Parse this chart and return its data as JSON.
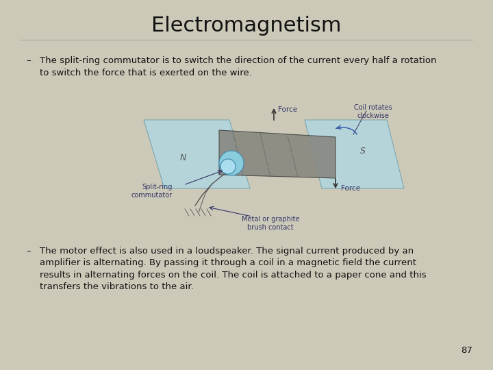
{
  "title": "Electromagnetism",
  "title_fontsize": 22,
  "title_fontweight": "normal",
  "background_color": "#ccc9b8",
  "text_color": "#111111",
  "bullet1_label": "–",
  "bullet1_text": "The split-ring commutator is to switch the direction of the current every half a rotation\nto switch the force that is exerted on the wire.",
  "bullet2_label": "–",
  "bullet2_text": "The motor effect is also used in a loudspeaker. The signal current produced by an\namplifier is alternating. By passing it through a coil in a magnetic field the current\nresults in alternating forces on the coil. The coil is attached to a paper cone and this\ntransfers the vibrations to the air.",
  "page_number": "87",
  "font_family": "DejaVu Sans",
  "bullet_fontsize": 9.5,
  "page_fontsize": 9.5,
  "diagram_label_color": "#333366",
  "plate_fill": "#add8e6",
  "plate_edge": "#6699aa",
  "coil_fill": "#888880",
  "coil_edge": "#444444"
}
